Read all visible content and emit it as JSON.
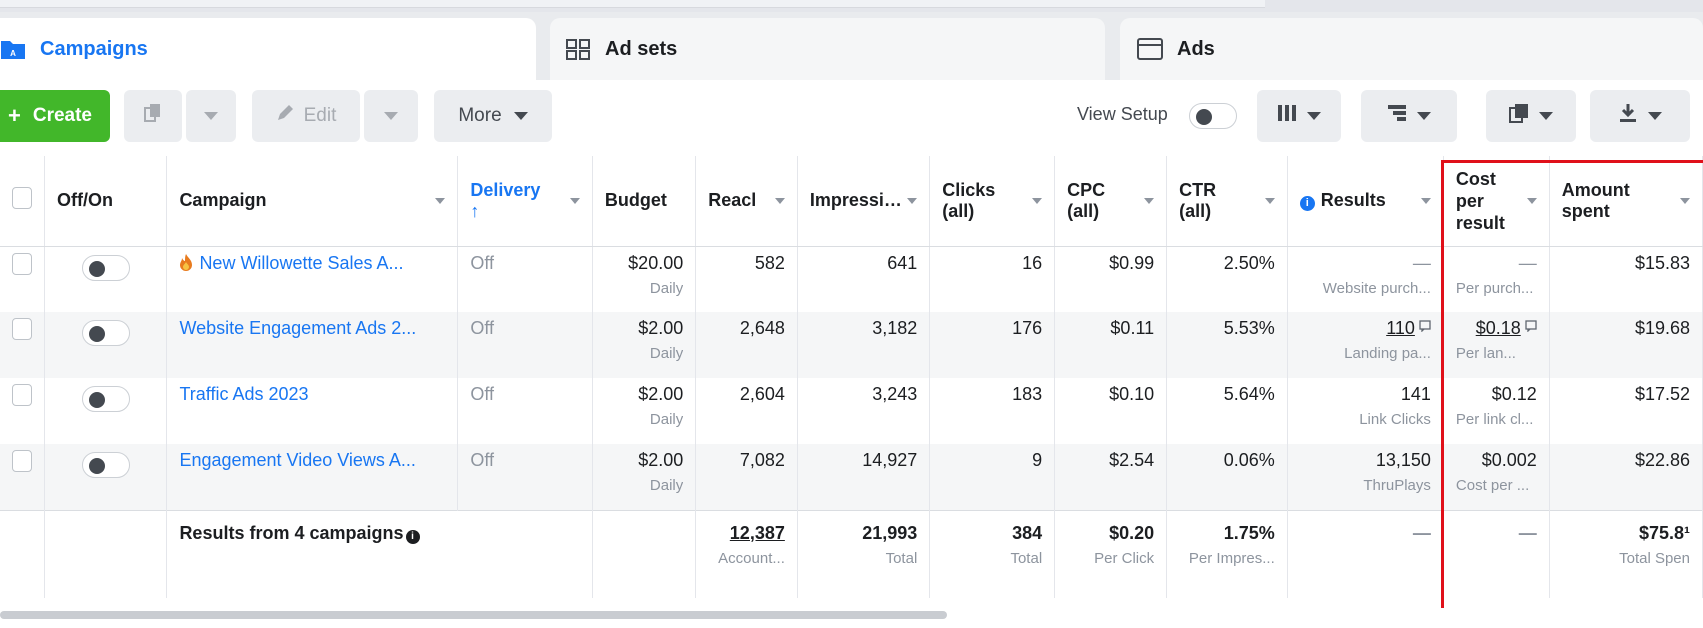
{
  "tabs": [
    {
      "label": "Campaigns",
      "active": true
    },
    {
      "label": "Ad sets",
      "active": false
    },
    {
      "label": "Ads",
      "active": false
    }
  ],
  "toolbar": {
    "create_label": "Create",
    "edit_label": "Edit",
    "more_label": "More",
    "view_setup_label": "View Setup"
  },
  "columns": {
    "off_on": "Off/On",
    "campaign": "Campaign",
    "delivery": "Delivery",
    "delivery_sort": "↑",
    "budget": "Budget",
    "reach": "Reacl",
    "impressions": "Impressi…",
    "clicks": "Clicks (all)",
    "cpc": "CPC (all)",
    "ctr": "CTR (all)",
    "results": "Results",
    "cost_per_result": "Cost per result",
    "amount_spent": "Amount spent"
  },
  "rows": [
    {
      "name": "New Willowette Sales A...",
      "icon": "flame-icon",
      "delivery": "Off",
      "budget": "$20.00",
      "budget_period": "Daily",
      "reach": "582",
      "impressions": "641",
      "clicks": "16",
      "cpc": "$0.99",
      "ctr": "2.50%",
      "results": "—",
      "results_sub": "Website purch...",
      "cost_per_result": "—",
      "cost_sub": "Per purch...",
      "amount_spent": "$15.83"
    },
    {
      "name": "Website Engagement Ads 2...",
      "delivery": "Off",
      "budget": "$2.00",
      "budget_period": "Daily",
      "reach": "2,648",
      "impressions": "3,182",
      "clicks": "176",
      "cpc": "$0.11",
      "ctr": "5.53%",
      "results": "110",
      "results_sub": "Landing pa...",
      "cost_per_result": "$0.18",
      "cost_sub": "Per lan...",
      "amount_spent": "$19.68"
    },
    {
      "name": "Traffic Ads 2023",
      "delivery": "Off",
      "budget": "$2.00",
      "budget_period": "Daily",
      "reach": "2,604",
      "impressions": "3,243",
      "clicks": "183",
      "cpc": "$0.10",
      "ctr": "5.64%",
      "results": "141",
      "results_sub": "Link Clicks",
      "cost_per_result": "$0.12",
      "cost_sub": "Per link cl...",
      "amount_spent": "$17.52"
    },
    {
      "name": "Engagement Video Views A...",
      "delivery": "Off",
      "budget": "$2.00",
      "budget_period": "Daily",
      "reach": "7,082",
      "impressions": "14,927",
      "clicks": "9",
      "cpc": "$2.54",
      "ctr": "0.06%",
      "results": "13,150",
      "results_sub": "ThruPlays",
      "cost_per_result": "$0.002",
      "cost_sub": "Cost per ...",
      "amount_spent": "$22.86"
    }
  ],
  "totals": {
    "label": "Results from 4 campaigns",
    "reach": "12,387",
    "reach_sub": "Account...",
    "impressions": "21,993",
    "impressions_sub": "Total",
    "clicks": "384",
    "clicks_sub": "Total",
    "cpc": "$0.20",
    "cpc_sub": "Per Click",
    "ctr": "1.75%",
    "ctr_sub": "Per Impres...",
    "results": "—",
    "cost_per_result": "—",
    "amount_spent": "$75.8¹",
    "amount_sub": "Total Spen"
  },
  "colors": {
    "brand_blue": "#1876f2",
    "create_green": "#42b72a",
    "highlight_red": "#e0101a"
  }
}
